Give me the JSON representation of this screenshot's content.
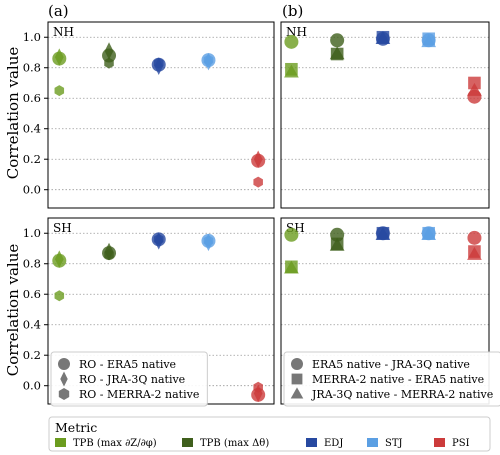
{
  "panel_letters": [
    "(a)",
    "(b)"
  ],
  "ylabel": "Correlation value",
  "metric_legend_title": "Metric",
  "metrics": [
    {
      "key": "tpb_grad",
      "label": "TPB (max ∂Z/∂φ)",
      "color": "#6b9c1f"
    },
    {
      "key": "tpb_dtheta",
      "label": "TPB (max Δθ)",
      "color": "#3f5f1c"
    },
    {
      "key": "edj",
      "label": "EDJ",
      "color": "#2749a0"
    },
    {
      "key": "stj",
      "label": "STJ",
      "color": "#5b9fe3"
    },
    {
      "key": "psi",
      "label": "PSI",
      "color": "#cc3b3b"
    }
  ],
  "left_legend": [
    {
      "marker": "circle",
      "label": "RO - ERA5 native"
    },
    {
      "marker": "diamond",
      "label": "RO - JRA-3Q native"
    },
    {
      "marker": "hexagon",
      "label": "RO - MERRA-2 native"
    }
  ],
  "right_legend": [
    {
      "marker": "circle",
      "label": "ERA5 native - JRA-3Q native"
    },
    {
      "marker": "square",
      "label": "MERRA-2 native - ERA5 native"
    },
    {
      "marker": "triangle",
      "label": "JRA-3Q native - MERRA-2 native"
    }
  ],
  "chart_data": [
    {
      "type": "scatter",
      "panel": "(a)",
      "region": "NH",
      "ylim": [
        -0.12,
        1.1
      ],
      "yticks": [
        "0.0",
        "0.2",
        "0.4",
        "0.6",
        "0.8",
        "1.0"
      ],
      "grid": "horizontal",
      "series": [
        {
          "name": "RO - ERA5 native",
          "marker": "circle",
          "values": [
            0.86,
            0.88,
            0.82,
            0.85,
            0.19
          ]
        },
        {
          "name": "RO - JRA-3Q native",
          "marker": "diamond",
          "values": [
            0.87,
            0.91,
            0.81,
            0.84,
            0.2
          ]
        },
        {
          "name": "RO - MERRA-2 native",
          "marker": "hexagon",
          "values": [
            0.65,
            0.83,
            0.83,
            0.85,
            0.05
          ]
        }
      ]
    },
    {
      "type": "scatter",
      "panel": "(b)",
      "region": "NH",
      "ylim": [
        -0.12,
        1.1
      ],
      "yticks": [
        "0.0",
        "0.2",
        "0.4",
        "0.6",
        "0.8",
        "1.0"
      ],
      "grid": "horizontal",
      "series": [
        {
          "name": "ERA5 native - JRA-3Q native",
          "marker": "circle",
          "values": [
            0.97,
            0.98,
            0.99,
            0.98,
            0.61
          ]
        },
        {
          "name": "MERRA-2 native - ERA5 native",
          "marker": "square",
          "values": [
            0.79,
            0.89,
            1.0,
            0.99,
            0.7
          ]
        },
        {
          "name": "JRA-3Q native - MERRA-2 native",
          "marker": "triangle",
          "values": [
            0.77,
            0.89,
            0.99,
            0.97,
            0.65
          ]
        }
      ]
    },
    {
      "type": "scatter",
      "panel": "(a)",
      "region": "SH",
      "ylim": [
        -0.12,
        1.1
      ],
      "yticks": [
        "0.0",
        "0.2",
        "0.4",
        "0.6",
        "0.8",
        "1.0"
      ],
      "grid": "horizontal",
      "series": [
        {
          "name": "RO - ERA5 native",
          "marker": "circle",
          "values": [
            0.82,
            0.87,
            0.96,
            0.95,
            -0.06
          ]
        },
        {
          "name": "RO - JRA-3Q native",
          "marker": "diamond",
          "values": [
            0.83,
            0.88,
            0.95,
            0.94,
            -0.05
          ]
        },
        {
          "name": "RO - MERRA-2 native",
          "marker": "hexagon",
          "values": [
            0.59,
            0.86,
            0.96,
            0.95,
            -0.01
          ]
        }
      ]
    },
    {
      "type": "scatter",
      "panel": "(b)",
      "region": "SH",
      "ylim": [
        -0.12,
        1.1
      ],
      "yticks": [
        "0.0",
        "0.2",
        "0.4",
        "0.6",
        "0.8",
        "1.0"
      ],
      "grid": "horizontal",
      "series": [
        {
          "name": "ERA5 native - JRA-3Q native",
          "marker": "circle",
          "values": [
            0.99,
            0.99,
            1.0,
            1.0,
            0.97
          ]
        },
        {
          "name": "MERRA-2 native - ERA5 native",
          "marker": "square",
          "values": [
            0.78,
            0.93,
            1.0,
            1.0,
            0.88
          ]
        },
        {
          "name": "JRA-3Q native - MERRA-2 native",
          "marker": "triangle",
          "values": [
            0.77,
            0.92,
            0.99,
            0.99,
            0.86
          ]
        }
      ]
    }
  ]
}
